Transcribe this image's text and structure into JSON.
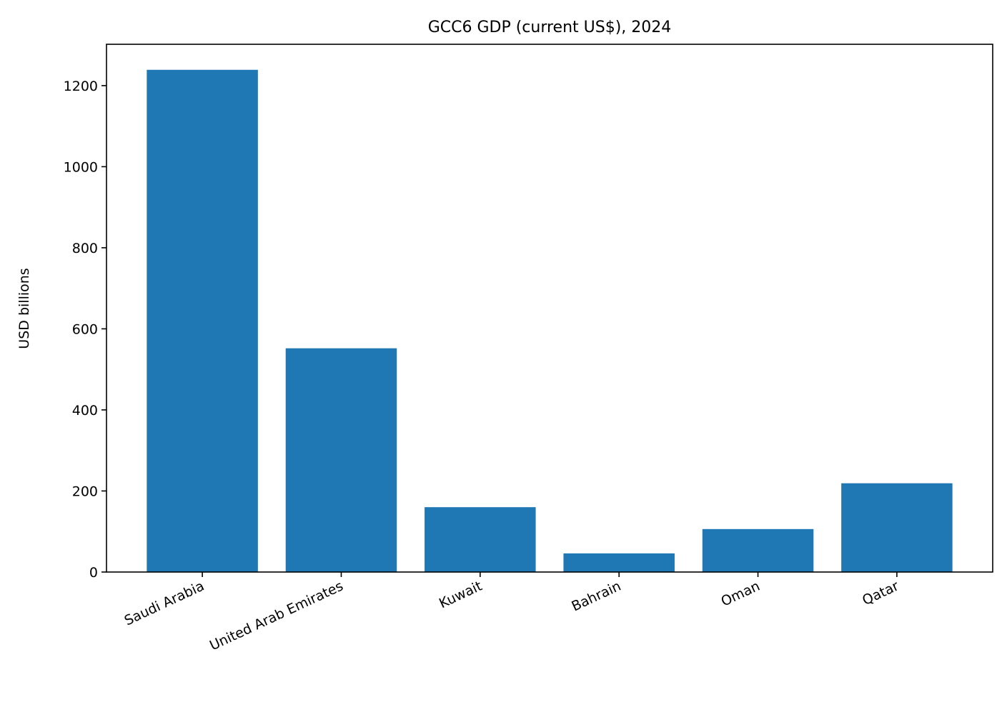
{
  "chart_data": {
    "type": "bar",
    "title": "GCC6 GDP (current US$), 2024",
    "xlabel": "",
    "ylabel": "USD billions",
    "categories": [
      "Saudi Arabia",
      "United Arab Emirates",
      "Kuwait",
      "Bahrain",
      "Oman",
      "Qatar"
    ],
    "values": [
      1239,
      552,
      160,
      46,
      106,
      219
    ],
    "ylim": [
      0,
      1302
    ],
    "yticks": [
      0,
      200,
      400,
      600,
      800,
      1000,
      1200
    ],
    "grid": false,
    "legend": "none",
    "bar_color": "#1f77b4"
  }
}
